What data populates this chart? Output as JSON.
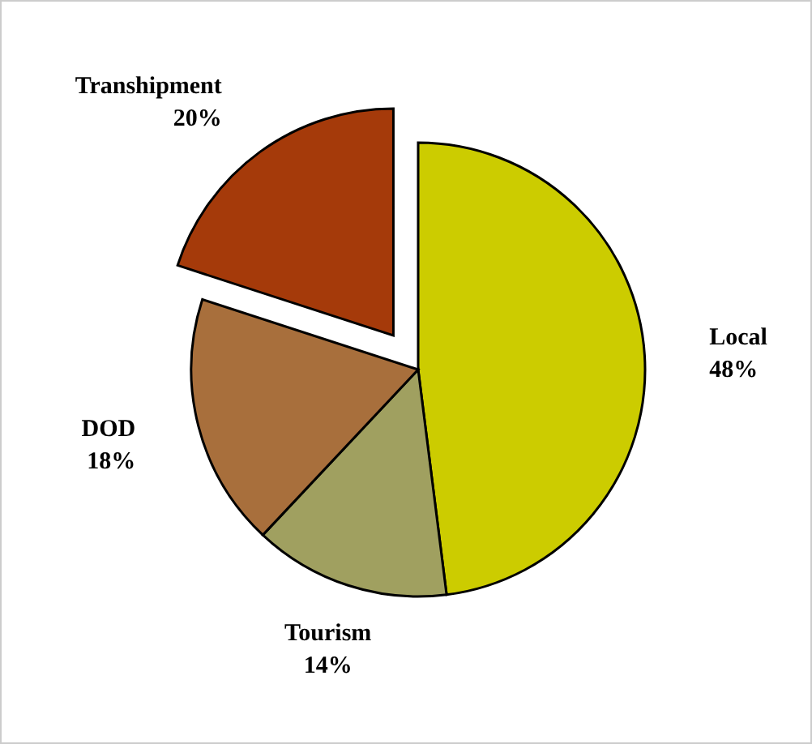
{
  "chart_data": {
    "type": "pie",
    "categories": [
      "Local",
      "Tourism",
      "DOD",
      "Transhipment"
    ],
    "values": [
      48,
      14,
      18,
      20
    ],
    "colors": [
      "#cccc00",
      "#a0a060",
      "#a86f3c",
      "#a53a0a"
    ],
    "value_labels": [
      "48%",
      "14%",
      "18%",
      "20%"
    ]
  }
}
